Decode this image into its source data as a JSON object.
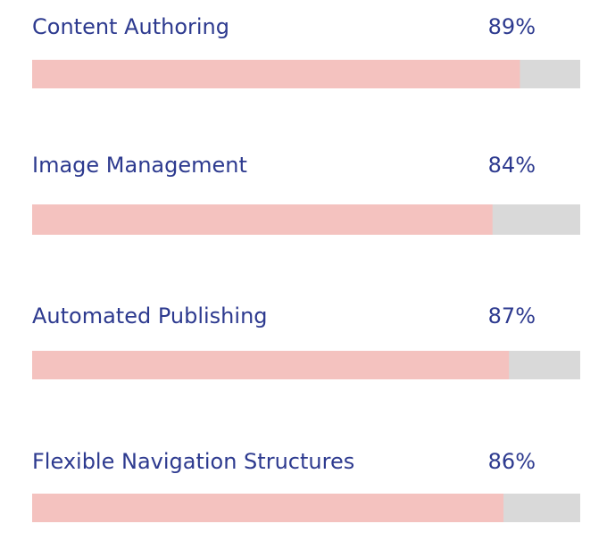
{
  "chart_data": {
    "type": "bar",
    "orientation": "horizontal",
    "categories": [
      "Content Authoring",
      "Image Management",
      "Automated Publishing",
      "Flexible Navigation Structures"
    ],
    "values": [
      89,
      84,
      87,
      86
    ],
    "value_labels": [
      "89%",
      "84%",
      "87%",
      "86%"
    ],
    "xlim": [
      0,
      100
    ],
    "color": "#f4c2bf",
    "track_color": "#d9d9d9",
    "text_color": "#2d3a8f"
  }
}
